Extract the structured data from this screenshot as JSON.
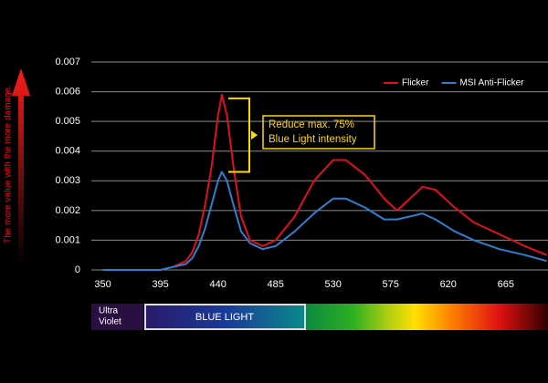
{
  "chart_data": {
    "type": "line",
    "y_axis_label": "The more value with the more damage.",
    "annotation": [
      "Reduce  max. 75%",
      "Blue Light intensity"
    ],
    "spectrum_labels": {
      "ultra_violet": [
        "Ultra",
        "Violet"
      ],
      "blue_light": "BLUE LIGHT"
    },
    "x": [
      350,
      395,
      405,
      415,
      420,
      425,
      430,
      435,
      440,
      443,
      447,
      452,
      458,
      465,
      475,
      485,
      500,
      515,
      530,
      540,
      555,
      570,
      580,
      590,
      600,
      610,
      625,
      640,
      660,
      680,
      697
    ],
    "series": [
      {
        "name": "Flicker",
        "color": "#e0101e",
        "values": [
          0,
          0,
          0.0001,
          0.0003,
          0.0006,
          0.0012,
          0.0022,
          0.0035,
          0.0052,
          0.0059,
          0.0052,
          0.0035,
          0.0018,
          0.001,
          0.0008,
          0.001,
          0.0018,
          0.003,
          0.0037,
          0.0037,
          0.0032,
          0.0024,
          0.002,
          0.0024,
          0.0028,
          0.0027,
          0.0021,
          0.0016,
          0.0012,
          0.0008,
          0.0005
        ]
      },
      {
        "name": "MSI Anti-Flicker",
        "color": "#2f7fd0",
        "values": [
          0,
          0,
          0.0001,
          0.0002,
          0.0004,
          0.0008,
          0.0014,
          0.0022,
          0.003,
          0.0033,
          0.003,
          0.0022,
          0.0013,
          0.0009,
          0.0007,
          0.0008,
          0.0013,
          0.0019,
          0.0024,
          0.0024,
          0.0021,
          0.0017,
          0.0017,
          0.0018,
          0.0019,
          0.0017,
          0.0013,
          0.001,
          0.0007,
          0.0005,
          0.0003
        ]
      }
    ],
    "xlim": [
      341,
      698
    ],
    "xticks": [
      350,
      395,
      440,
      485,
      530,
      575,
      620,
      665
    ],
    "ylim": [
      0,
      0.007
    ],
    "yticks": [
      0,
      0.001,
      0.002,
      0.003,
      0.004,
      0.005,
      0.006,
      0.007
    ],
    "grid": true,
    "legend": "top-right"
  }
}
